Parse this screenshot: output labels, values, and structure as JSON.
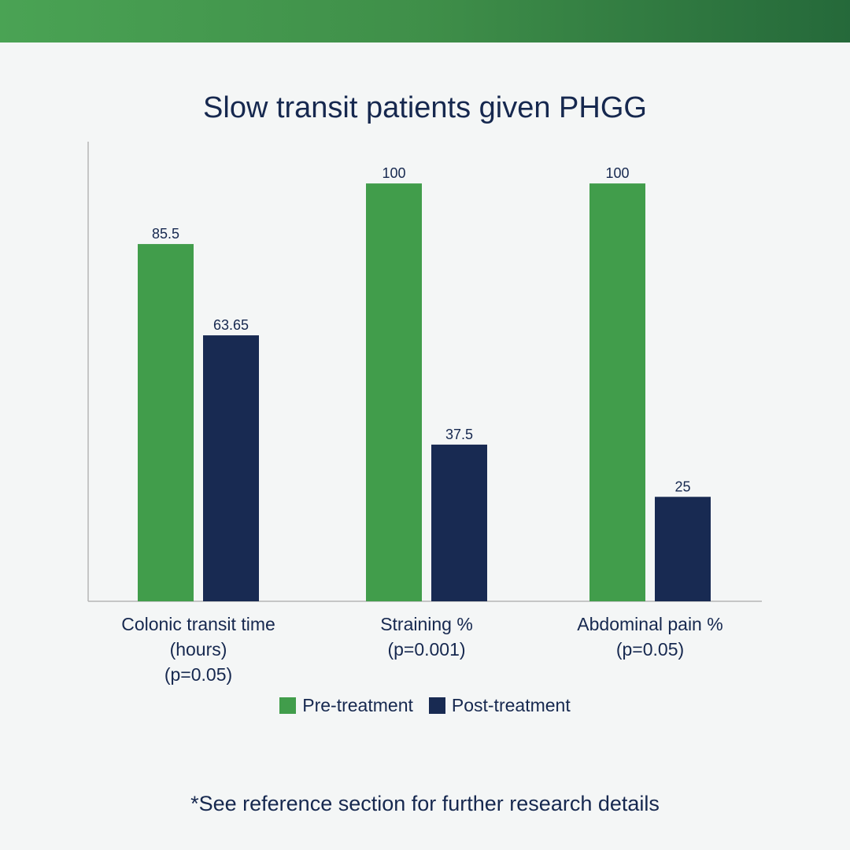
{
  "chart_data": {
    "type": "bar",
    "title": "Slow transit patients given PHGG",
    "categories": [
      [
        "Colonic transit time",
        "(hours)",
        "(p=0.05)"
      ],
      [
        "Straining %",
        "(p=0.001)"
      ],
      [
        "Abdominal pain %",
        "(p=0.05)"
      ]
    ],
    "series": [
      {
        "name": "Pre-treatment",
        "color": "#419d4b",
        "values": [
          85.5,
          100,
          100
        ],
        "labels": [
          "85.5",
          "100",
          "100"
        ]
      },
      {
        "name": "Post-treatment",
        "color": "#182a52",
        "values": [
          63.65,
          37.5,
          25
        ],
        "labels": [
          "63.65",
          "37.5",
          "25"
        ]
      }
    ],
    "ylim": [
      0,
      110
    ],
    "legend": "bottom",
    "grid": false
  },
  "footnote": "*See reference section for further research details"
}
